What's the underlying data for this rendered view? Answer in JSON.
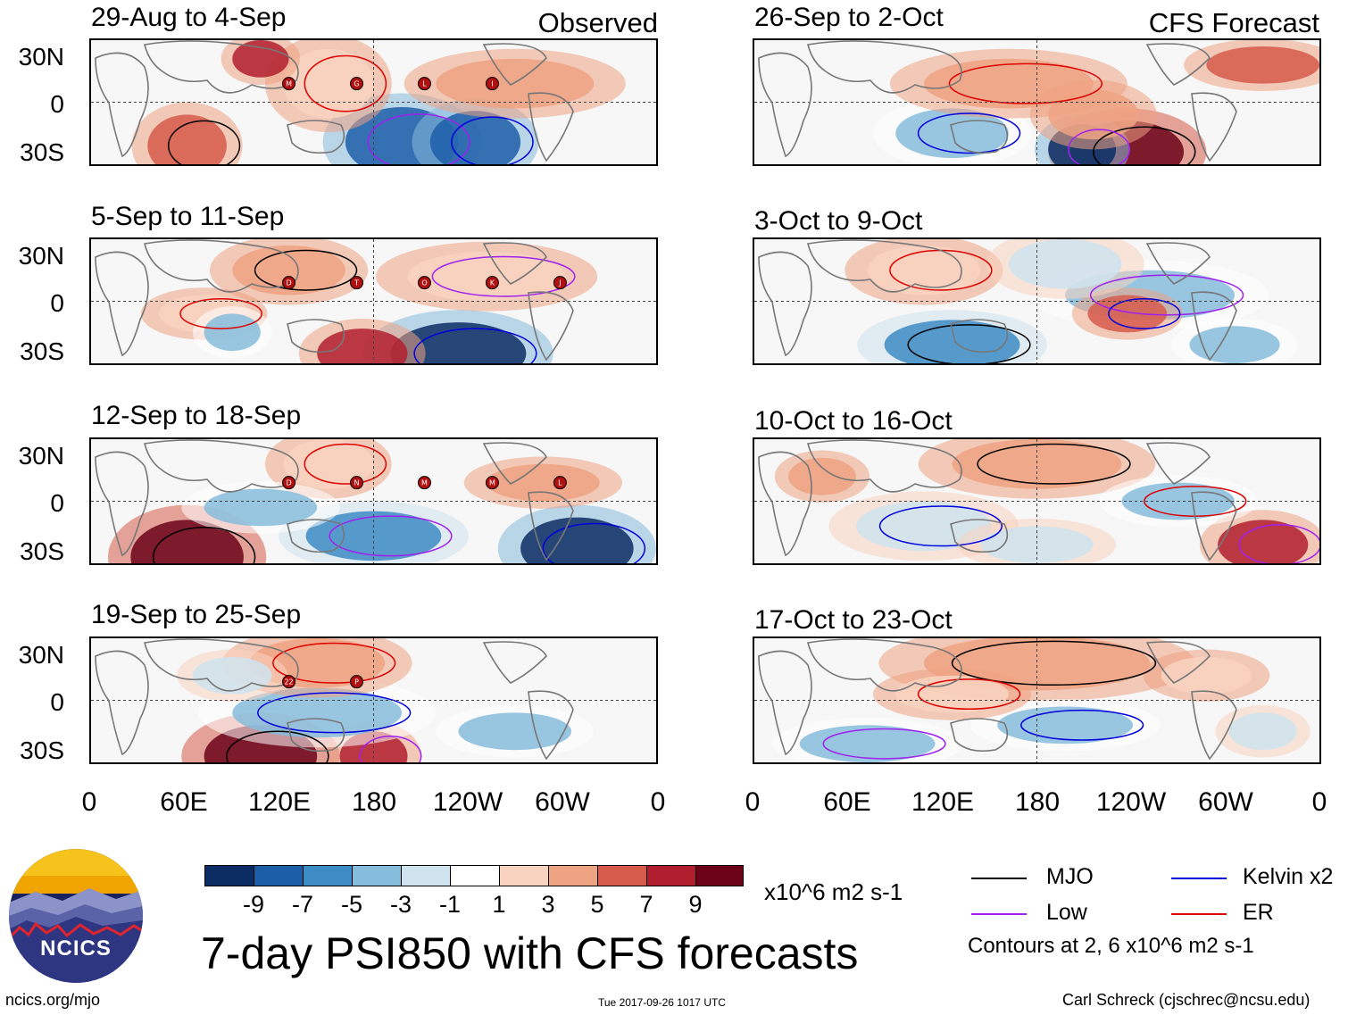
{
  "panel_tags": {
    "observed": "Observed",
    "forecast": "CFS Forecast"
  },
  "chart_data": {
    "type": "heatmap",
    "title": "7-day PSI850 with CFS forecasts",
    "variable": "PSI850 anomaly",
    "units": "x10^6 m2 s-1",
    "x_axis": {
      "ticks": [
        "0",
        "60E",
        "120E",
        "180",
        "120W",
        "60W",
        "0"
      ],
      "range_deg": [
        0,
        360
      ]
    },
    "y_axis": {
      "ticks": [
        "30N",
        "0",
        "30S"
      ],
      "range_deg": [
        -40,
        40
      ]
    },
    "color_scale": {
      "ticks": [
        "-9",
        "-7",
        "-5",
        "-3",
        "-1",
        "1",
        "3",
        "5",
        "7",
        "9"
      ],
      "colors": [
        "#0b2d63",
        "#1d5ea8",
        "#3d8cc6",
        "#86bcdc",
        "#cfe3ef",
        "#ffffff",
        "#f9d3c0",
        "#eea383",
        "#d65b4b",
        "#b11f2e",
        "#6b0218"
      ]
    },
    "panels": [
      {
        "column": "observed",
        "period": "29-Aug to 4-Sep",
        "storms": [
          "M",
          "G",
          "L",
          "I"
        ]
      },
      {
        "column": "observed",
        "period": "5-Sep to 11-Sep",
        "storms": [
          "D",
          "T",
          "O",
          "K",
          "J"
        ]
      },
      {
        "column": "observed",
        "period": "12-Sep to 18-Sep",
        "storms": [
          "D",
          "N",
          "M",
          "M",
          "L"
        ]
      },
      {
        "column": "observed",
        "period": "19-Sep to 25-Sep",
        "storms": [
          "22",
          "P"
        ]
      },
      {
        "column": "forecast",
        "period": "26-Sep to 2-Oct",
        "storms": []
      },
      {
        "column": "forecast",
        "period": "3-Oct to 9-Oct",
        "storms": []
      },
      {
        "column": "forecast",
        "period": "10-Oct to 16-Oct",
        "storms": []
      },
      {
        "column": "forecast",
        "period": "17-Oct to 23-Oct",
        "storms": []
      }
    ],
    "contour_legend": [
      {
        "label": "MJO",
        "color": "#000000"
      },
      {
        "label": "Low",
        "color": "#a020f0"
      },
      {
        "label": "Kelvin x2",
        "color": "#0000dd"
      },
      {
        "label": "ER",
        "color": "#dd0000"
      }
    ],
    "contour_note": "Contours at 2, 6 x10^6 m2 s-1"
  },
  "logo": {
    "text": "NCICS"
  },
  "footer": {
    "site": "ncics.org/mjo",
    "timestamp": "Tue 2017-09-26 1017 UTC",
    "author": "Carl Schreck (cjschrec@ncsu.edu)"
  }
}
